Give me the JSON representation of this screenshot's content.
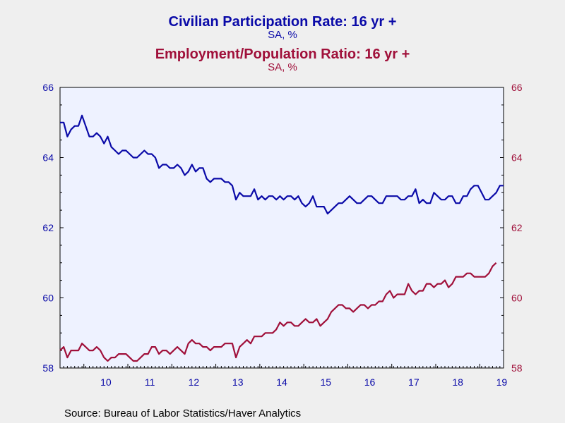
{
  "titles": {
    "series1_title": "Civilian Participation Rate: 16 yr +",
    "series1_unit": "SA, %",
    "series2_title": "Employment/Population Ratio: 16 yr +",
    "series2_unit": "SA, %"
  },
  "source": "Source:  Bureau of Labor Statistics/Haver Analytics",
  "colors": {
    "series1": "#0a0aa8",
    "series2": "#a0103a",
    "plot_bg": "#eef2ff"
  },
  "chart_data": {
    "type": "line",
    "x_start": "2009-06",
    "x_end": "2019-06",
    "frequency": "monthly",
    "x_tick_labels": [
      "10",
      "11",
      "12",
      "13",
      "14",
      "15",
      "16",
      "17",
      "18",
      "19"
    ],
    "ylim_left": [
      58,
      66
    ],
    "ylim_right": [
      58,
      66
    ],
    "y_ticks_left": [
      58,
      60,
      62,
      64,
      66
    ],
    "y_ticks_right": [
      58,
      60,
      62,
      64,
      66
    ],
    "grid": false,
    "series": [
      {
        "name": "Civilian Participation Rate: 16 yr +",
        "axis": "left",
        "values": [
          65.0,
          65.0,
          64.6,
          64.8,
          64.9,
          64.9,
          65.2,
          64.9,
          64.6,
          64.6,
          64.7,
          64.6,
          64.4,
          64.6,
          64.3,
          64.2,
          64.1,
          64.2,
          64.2,
          64.1,
          64.0,
          64.0,
          64.1,
          64.2,
          64.1,
          64.1,
          64.0,
          63.7,
          63.8,
          63.8,
          63.7,
          63.7,
          63.8,
          63.7,
          63.5,
          63.6,
          63.8,
          63.6,
          63.7,
          63.7,
          63.4,
          63.3,
          63.4,
          63.4,
          63.4,
          63.3,
          63.3,
          63.2,
          62.8,
          63.0,
          62.9,
          62.9,
          62.9,
          63.1,
          62.8,
          62.9,
          62.8,
          62.9,
          62.9,
          62.8,
          62.9,
          62.8,
          62.9,
          62.9,
          62.8,
          62.9,
          62.7,
          62.6,
          62.7,
          62.9,
          62.6,
          62.6,
          62.6,
          62.4,
          62.5,
          62.6,
          62.7,
          62.7,
          62.8,
          62.9,
          62.8,
          62.7,
          62.7,
          62.8,
          62.9,
          62.9,
          62.8,
          62.7,
          62.7,
          62.9,
          62.9,
          62.9,
          62.9,
          62.8,
          62.8,
          62.9,
          62.9,
          63.1,
          62.7,
          62.8,
          62.7,
          62.7,
          63.0,
          62.9,
          62.8,
          62.8,
          62.9,
          62.9,
          62.7,
          62.7,
          62.9,
          62.9,
          63.1,
          63.2,
          63.2,
          63.0,
          62.8,
          62.8,
          62.9,
          63.0,
          63.2,
          63.2
        ]
      },
      {
        "name": "Employment/Population Ratio: 16 yr +",
        "axis": "right",
        "values": [
          58.5,
          58.6,
          58.3,
          58.5,
          58.5,
          58.5,
          58.7,
          58.6,
          58.5,
          58.5,
          58.6,
          58.5,
          58.3,
          58.2,
          58.3,
          58.3,
          58.4,
          58.4,
          58.4,
          58.3,
          58.2,
          58.2,
          58.3,
          58.4,
          58.4,
          58.6,
          58.6,
          58.4,
          58.5,
          58.5,
          58.4,
          58.5,
          58.6,
          58.5,
          58.4,
          58.7,
          58.8,
          58.7,
          58.7,
          58.6,
          58.6,
          58.5,
          58.6,
          58.6,
          58.6,
          58.7,
          58.7,
          58.7,
          58.3,
          58.6,
          58.7,
          58.8,
          58.7,
          58.9,
          58.9,
          58.9,
          59.0,
          59.0,
          59.0,
          59.1,
          59.3,
          59.2,
          59.3,
          59.3,
          59.2,
          59.2,
          59.3,
          59.4,
          59.3,
          59.3,
          59.4,
          59.2,
          59.3,
          59.4,
          59.6,
          59.7,
          59.8,
          59.8,
          59.7,
          59.7,
          59.6,
          59.7,
          59.8,
          59.8,
          59.7,
          59.8,
          59.8,
          59.9,
          59.9,
          60.1,
          60.2,
          60.0,
          60.1,
          60.1,
          60.1,
          60.4,
          60.2,
          60.1,
          60.2,
          60.2,
          60.4,
          60.4,
          60.3,
          60.4,
          60.4,
          60.5,
          60.3,
          60.4,
          60.6,
          60.6,
          60.6,
          60.7,
          60.7,
          60.6,
          60.6,
          60.6,
          60.6,
          60.7,
          60.9,
          61.0
        ]
      }
    ]
  }
}
